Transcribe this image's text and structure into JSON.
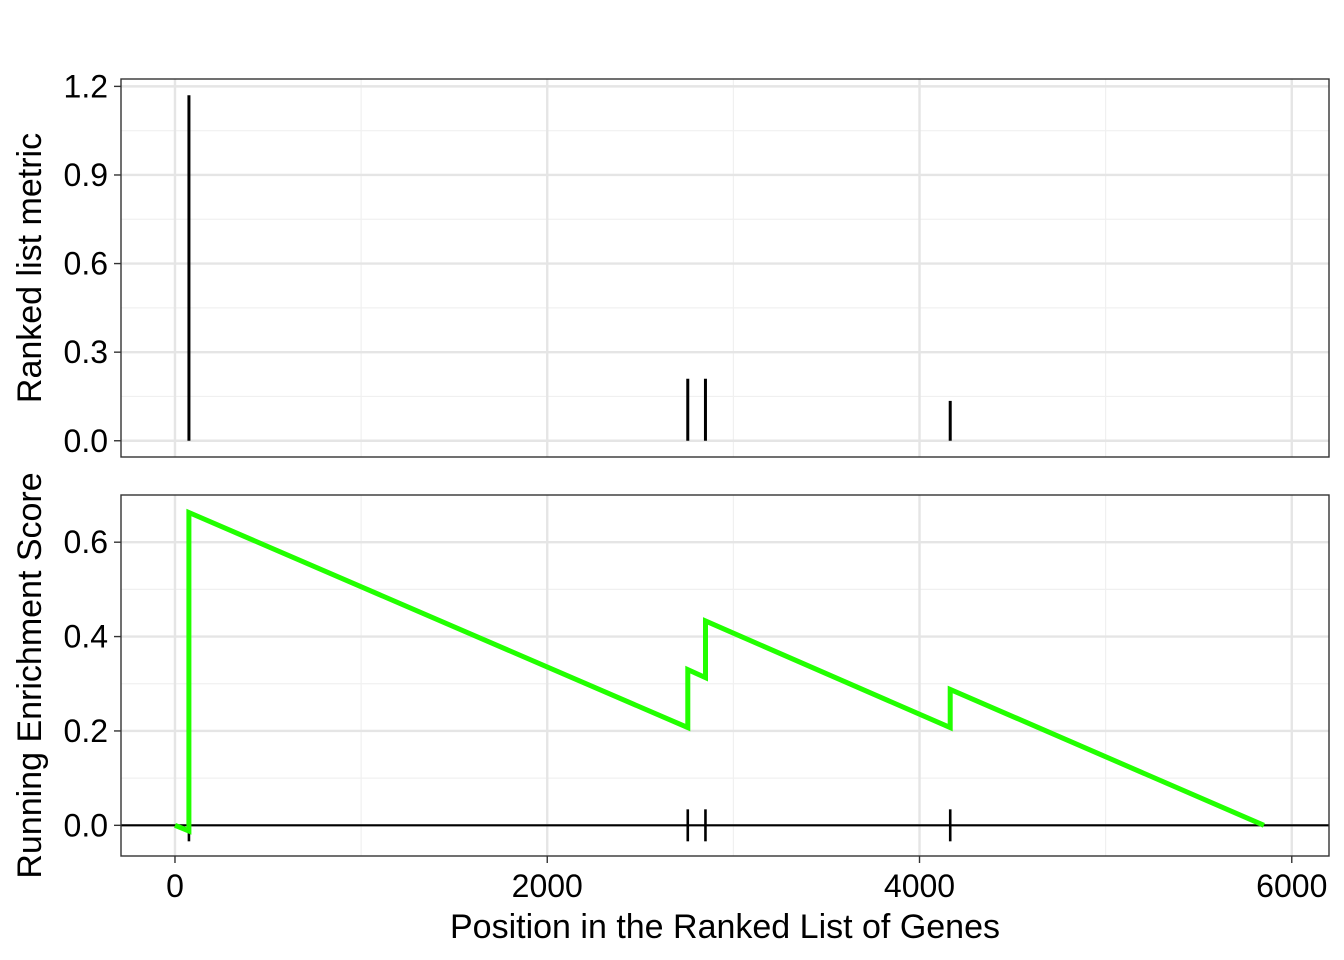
{
  "chart_data": [
    {
      "type": "bar",
      "panel": "top",
      "ylabel": "Ranked list metric",
      "xlabel": "",
      "xlim": [
        -290,
        6200
      ],
      "ylim": [
        -0.055,
        1.225
      ],
      "y_ticks": [
        0.0,
        0.3,
        0.6,
        0.9,
        1.2
      ],
      "y_tick_labels": [
        "0.0",
        "0.3",
        "0.6",
        "0.9",
        "1.2"
      ],
      "x_ticks": [
        0,
        2000,
        4000,
        6000
      ],
      "grid": true,
      "x": [
        75,
        2755,
        2850,
        4165
      ],
      "values": [
        1.17,
        0.21,
        0.21,
        0.135
      ],
      "bar_color": "#000000"
    },
    {
      "type": "line",
      "panel": "bottom",
      "ylabel": "Running Enrichment Score",
      "xlabel": "Position in the Ranked List of Genes",
      "xlim": [
        -290,
        6200
      ],
      "ylim": [
        -0.065,
        0.7
      ],
      "y_ticks": [
        0.0,
        0.2,
        0.4,
        0.6
      ],
      "y_tick_labels": [
        "0.0",
        "0.2",
        "0.4",
        "0.6"
      ],
      "x_ticks": [
        0,
        2000,
        4000,
        6000
      ],
      "x_tick_labels": [
        "0",
        "2000",
        "4000",
        "6000"
      ],
      "grid": true,
      "series": [
        {
          "color": "#22ff00",
          "x": [
            0,
            75,
            75,
            2755,
            2755,
            2850,
            2850,
            4165,
            4165,
            5850
          ],
          "y": [
            0.0,
            -0.012,
            0.663,
            0.207,
            0.33,
            0.313,
            0.433,
            0.207,
            0.288,
            0.0
          ]
        }
      ],
      "hits": [
        75,
        2755,
        2850,
        4165
      ],
      "zero_line": true
    }
  ]
}
